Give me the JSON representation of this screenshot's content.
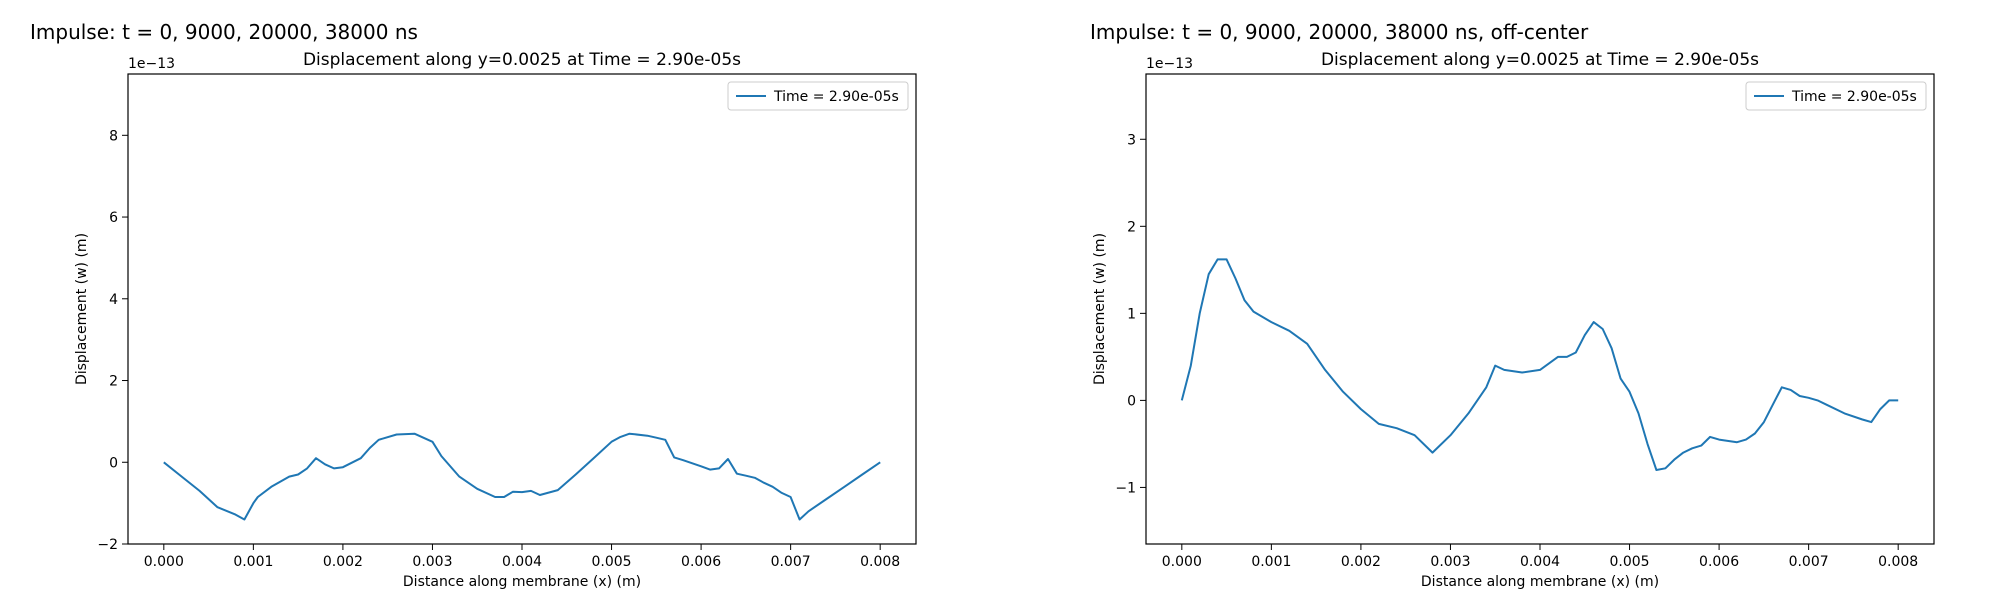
{
  "panels": [
    {
      "title": "Impulse: t = 0, 9000, 20000, 38000 ns"
    },
    {
      "title": "Impulse: t = 0, 9000, 20000, 38000 ns, off-center"
    }
  ],
  "chart_data": [
    {
      "type": "line",
      "title": "Displacement along y=0.0025 at Time = 2.90e-05s",
      "xlabel": "Distance along membrane (x) (m)",
      "ylabel": "Displacement (w) (m)",
      "y_scale_label": "1e−13",
      "xlim": [
        -0.0004,
        0.0084
      ],
      "ylim": [
        -2.0,
        9.5
      ],
      "x_ticks": [
        0.0,
        0.001,
        0.002,
        0.003,
        0.004,
        0.005,
        0.006,
        0.007,
        0.008
      ],
      "x_tick_labels": [
        "0.000",
        "0.001",
        "0.002",
        "0.003",
        "0.004",
        "0.005",
        "0.006",
        "0.007",
        "0.008"
      ],
      "y_ticks": [
        -2,
        0,
        2,
        4,
        6,
        8
      ],
      "y_tick_labels": [
        "−2",
        "0",
        "2",
        "4",
        "6",
        "8"
      ],
      "grid": false,
      "legend": "top-right",
      "series": [
        {
          "name": "Time = 2.90e-05s",
          "color": "#1f77b4",
          "x": [
            0.0,
            0.0002,
            0.0004,
            0.0006,
            0.0008,
            0.0009,
            0.001,
            0.00105,
            0.0012,
            0.0014,
            0.0015,
            0.0016,
            0.0017,
            0.0018,
            0.0019,
            0.002,
            0.0022,
            0.0023,
            0.0024,
            0.0026,
            0.0028,
            0.003,
            0.0031,
            0.0033,
            0.0035,
            0.0037,
            0.0038,
            0.0039,
            0.004,
            0.0041,
            0.0042,
            0.0044,
            0.0046,
            0.0048,
            0.005,
            0.0051,
            0.0052,
            0.0054,
            0.0055,
            0.0056,
            0.0057,
            0.0058,
            0.006,
            0.0061,
            0.0062,
            0.0063,
            0.0064,
            0.0065,
            0.0066,
            0.0067,
            0.0068,
            0.0069,
            0.007,
            0.0071,
            0.0072,
            0.0074,
            0.0076,
            0.0078,
            0.008
          ],
          "y": [
            0.0,
            -0.35,
            -0.7,
            -1.1,
            -1.28,
            -1.4,
            -1.0,
            -0.85,
            -0.6,
            -0.35,
            -0.3,
            -0.15,
            0.1,
            -0.05,
            -0.15,
            -0.12,
            0.1,
            0.35,
            0.55,
            0.68,
            0.7,
            0.5,
            0.15,
            -0.35,
            -0.65,
            -0.85,
            -0.85,
            -0.72,
            -0.73,
            -0.7,
            -0.8,
            -0.68,
            -0.3,
            0.1,
            0.5,
            0.62,
            0.7,
            0.65,
            0.6,
            0.55,
            0.12,
            0.05,
            -0.1,
            -0.18,
            -0.15,
            0.08,
            -0.28,
            -0.33,
            -0.38,
            -0.5,
            -0.6,
            -0.75,
            -0.85,
            -1.4,
            -1.2,
            -0.9,
            -0.6,
            -0.3,
            0.0
          ]
        }
      ]
    },
    {
      "type": "line",
      "title": "Displacement along y=0.0025 at Time = 2.90e-05s",
      "xlabel": "Distance along membrane (x) (m)",
      "ylabel": "Displacement (w) (m)",
      "y_scale_label": "1e−13",
      "xlim": [
        -0.0004,
        0.0084
      ],
      "ylim": [
        -1.65,
        3.75
      ],
      "x_ticks": [
        0.0,
        0.001,
        0.002,
        0.003,
        0.004,
        0.005,
        0.006,
        0.007,
        0.008
      ],
      "x_tick_labels": [
        "0.000",
        "0.001",
        "0.002",
        "0.003",
        "0.004",
        "0.005",
        "0.006",
        "0.007",
        "0.008"
      ],
      "y_ticks": [
        -1,
        0,
        1,
        2,
        3
      ],
      "y_tick_labels": [
        "−1",
        "0",
        "1",
        "2",
        "3"
      ],
      "grid": false,
      "legend": "top-right",
      "series": [
        {
          "name": "Time = 2.90e-05s",
          "color": "#1f77b4",
          "x": [
            0.0,
            0.0001,
            0.0002,
            0.0003,
            0.0004,
            0.0005,
            0.0006,
            0.0007,
            0.0008,
            0.001,
            0.0012,
            0.0014,
            0.0016,
            0.0018,
            0.002,
            0.0022,
            0.0024,
            0.0026,
            0.0028,
            0.003,
            0.0032,
            0.0034,
            0.0035,
            0.0036,
            0.0038,
            0.004,
            0.0042,
            0.0043,
            0.0044,
            0.0045,
            0.0046,
            0.0047,
            0.0048,
            0.0049,
            0.005,
            0.0051,
            0.0052,
            0.0053,
            0.0054,
            0.0055,
            0.0056,
            0.0057,
            0.0058,
            0.0059,
            0.006,
            0.0062,
            0.0063,
            0.0064,
            0.0065,
            0.0066,
            0.0067,
            0.0068,
            0.0069,
            0.007,
            0.0071,
            0.0072,
            0.0074,
            0.0076,
            0.0077,
            0.0078,
            0.0079,
            0.008
          ],
          "y": [
            0.0,
            0.4,
            1.0,
            1.45,
            1.62,
            1.62,
            1.4,
            1.15,
            1.02,
            0.9,
            0.8,
            0.65,
            0.35,
            0.1,
            -0.1,
            -0.27,
            -0.32,
            -0.4,
            -0.6,
            -0.4,
            -0.15,
            0.15,
            0.4,
            0.35,
            0.32,
            0.35,
            0.5,
            0.5,
            0.55,
            0.75,
            0.9,
            0.82,
            0.6,
            0.25,
            0.1,
            -0.15,
            -0.5,
            -0.8,
            -0.78,
            -0.68,
            -0.6,
            -0.55,
            -0.52,
            -0.42,
            -0.45,
            -0.48,
            -0.45,
            -0.38,
            -0.25,
            -0.05,
            0.15,
            0.12,
            0.05,
            0.03,
            0.0,
            -0.05,
            -0.15,
            -0.22,
            -0.25,
            -0.1,
            0.0,
            0.0
          ]
        }
      ]
    }
  ]
}
